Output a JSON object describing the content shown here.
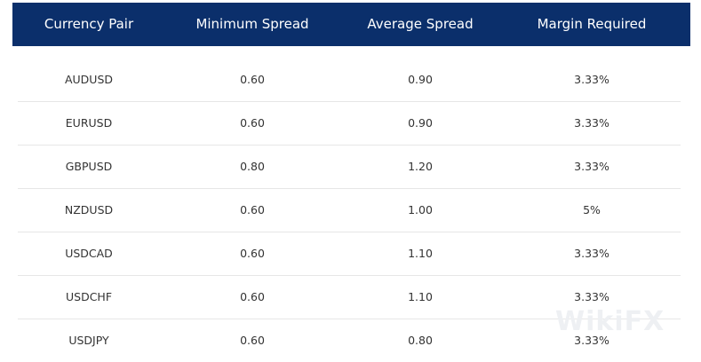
{
  "table": {
    "header": [
      "Currency Pair",
      "Minimum Spread",
      "Average Spread",
      "Margin Required"
    ],
    "rows": [
      [
        "AUDUSD",
        "0.60",
        "0.90",
        "3.33%"
      ],
      [
        "EURUSD",
        "0.60",
        "0.90",
        "3.33%"
      ],
      [
        "GBPUSD",
        "0.80",
        "1.20",
        "3.33%"
      ],
      [
        "NZDUSD",
        "0.60",
        "1.00",
        "5%"
      ],
      [
        "USDCAD",
        "0.60",
        "1.10",
        "3.33%"
      ],
      [
        "USDCHF",
        "0.60",
        "1.10",
        "3.33%"
      ],
      [
        "USDJPY",
        "0.60",
        "0.80",
        "3.33%"
      ]
    ]
  },
  "watermark": "WikiFX"
}
